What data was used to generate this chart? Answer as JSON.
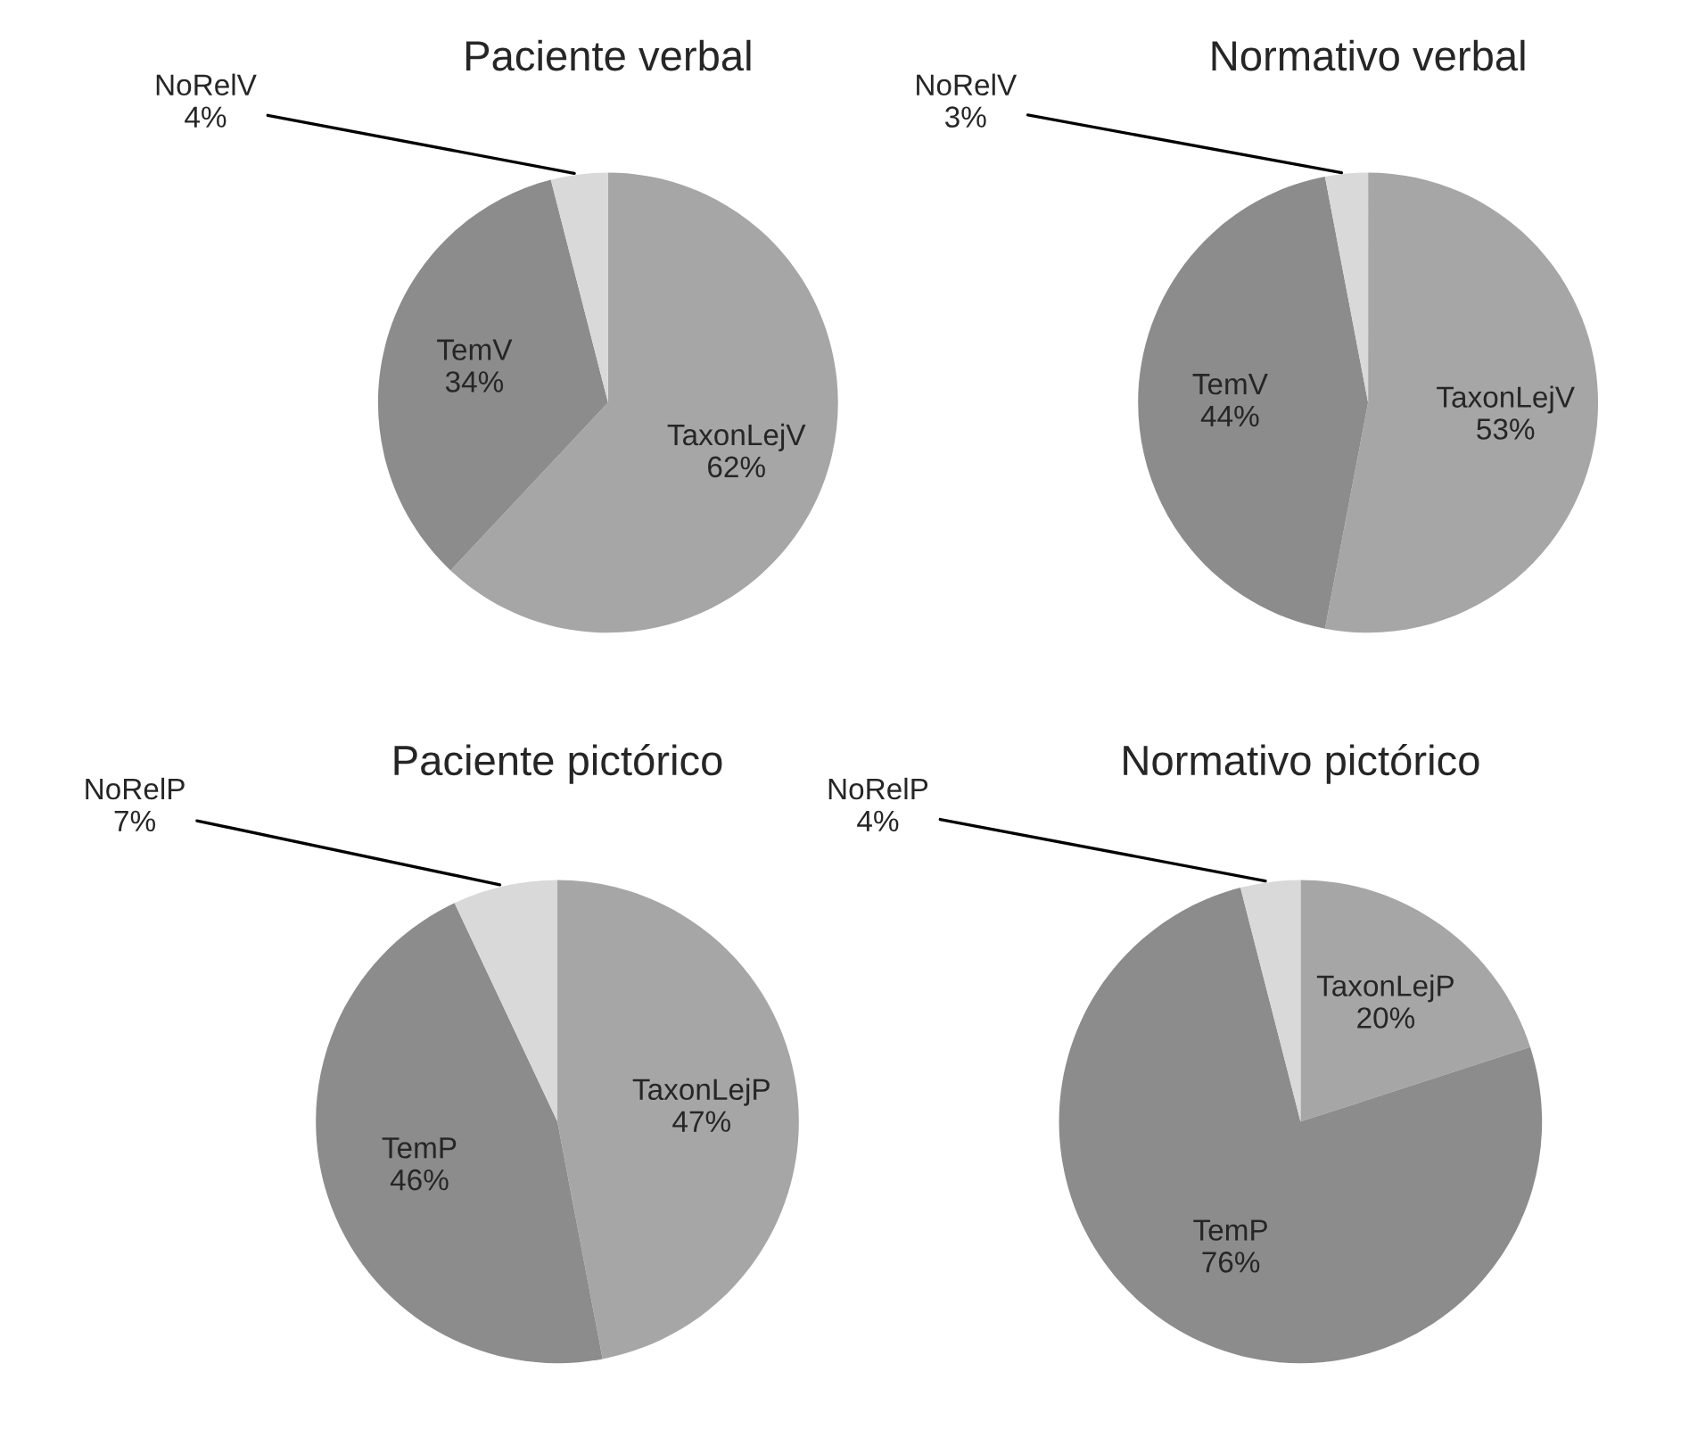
{
  "chart_data": [
    {
      "type": "pie",
      "title": "Paciente verbal",
      "categories": [
        "TaxonLejV",
        "TemV",
        "NoRelV"
      ],
      "values": [
        62,
        34,
        4
      ],
      "value_labels": [
        "62%",
        "34%",
        "4%"
      ],
      "colors": [
        "#a6a6a6",
        "#8c8c8c",
        "#d9d9d9"
      ]
    },
    {
      "type": "pie",
      "title": "Normativo verbal",
      "categories": [
        "TaxonLejV",
        "TemV",
        "NoRelV"
      ],
      "values": [
        53,
        44,
        3
      ],
      "value_labels": [
        "53%",
        "44%",
        "3%"
      ],
      "colors": [
        "#a6a6a6",
        "#8c8c8c",
        "#d9d9d9"
      ]
    },
    {
      "type": "pie",
      "title": "Paciente pictórico",
      "categories": [
        "TaxonLejP",
        "TemP",
        "NoRelP"
      ],
      "values": [
        47,
        46,
        7
      ],
      "value_labels": [
        "47%",
        "46%",
        "7%"
      ],
      "colors": [
        "#a6a6a6",
        "#8c8c8c",
        "#d9d9d9"
      ]
    },
    {
      "type": "pie",
      "title": "Normativo pictórico",
      "categories": [
        "TaxonLejP",
        "TemP",
        "NoRelP"
      ],
      "values": [
        20,
        76,
        4
      ],
      "value_labels": [
        "20%",
        "76%",
        "4%"
      ],
      "colors": [
        "#a6a6a6",
        "#8c8c8c",
        "#d9d9d9"
      ]
    }
  ]
}
